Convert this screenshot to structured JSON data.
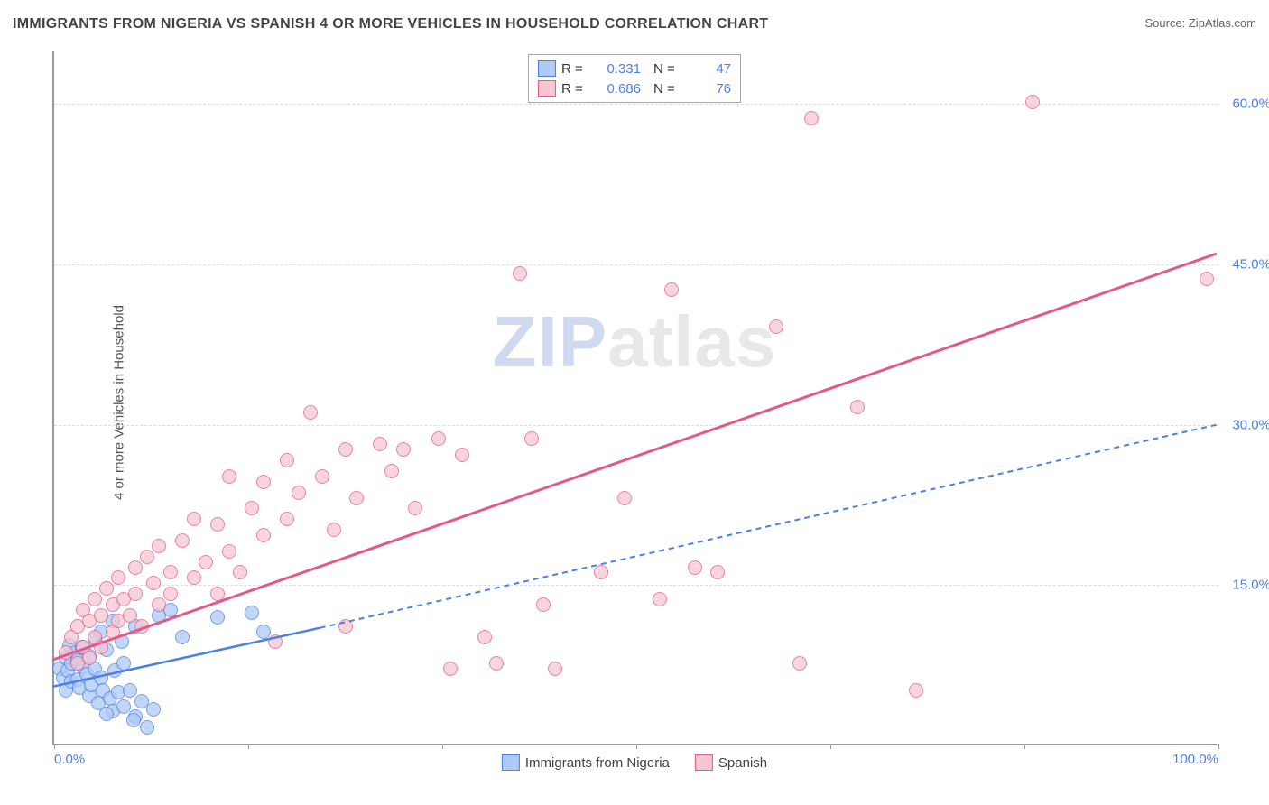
{
  "title": "IMMIGRANTS FROM NIGERIA VS SPANISH 4 OR MORE VEHICLES IN HOUSEHOLD CORRELATION CHART",
  "source_prefix": "Source: ",
  "source_link": "ZipAtlas.com",
  "ylabel": "4 or more Vehicles in Household",
  "watermark_a": "ZIP",
  "watermark_b": "atlas",
  "chart": {
    "type": "scatter",
    "background_color": "#ffffff",
    "grid_color": "#dddddd",
    "axis_color": "#999999",
    "tick_label_color": "#4a80e8",
    "xlim": [
      0,
      100
    ],
    "ylim": [
      0,
      65
    ],
    "x_ticks": [
      0,
      16.67,
      33.33,
      50,
      66.67,
      83.33,
      100
    ],
    "x_tick_labels_shown": {
      "0": "0.0%",
      "100": "100.0%"
    },
    "y_gridlines": [
      15,
      30,
      45,
      60
    ],
    "y_tick_labels": {
      "15": "15.0%",
      "30": "30.0%",
      "45": "45.0%",
      "60": "60.0%"
    },
    "marker_radius": 8,
    "marker_stroke_width": 1.5,
    "label_fontsize": 15,
    "title_fontsize": 16
  },
  "series": [
    {
      "name": "Immigrants from Nigeria",
      "key": "nigeria",
      "R": "0.331",
      "N": "47",
      "fill_color": "#aecaf5",
      "stroke_color": "#4a80e8",
      "trend": {
        "x1": 0,
        "y1": 5.5,
        "x2": 23,
        "y2": 11.0,
        "dash_x2": 100,
        "dash_y2": 30.0,
        "width": 2.5,
        "dash": "6,5"
      },
      "points": [
        [
          0.5,
          7.0
        ],
        [
          0.8,
          6.2
        ],
        [
          1.0,
          8.0
        ],
        [
          1.0,
          5.0
        ],
        [
          1.2,
          6.8
        ],
        [
          1.3,
          9.2
        ],
        [
          1.5,
          7.5
        ],
        [
          1.5,
          5.8
        ],
        [
          1.8,
          8.5
        ],
        [
          2.0,
          6.0
        ],
        [
          2.0,
          7.8
        ],
        [
          2.2,
          5.2
        ],
        [
          2.4,
          9.0
        ],
        [
          2.5,
          7.2
        ],
        [
          2.8,
          6.5
        ],
        [
          3.0,
          4.5
        ],
        [
          3.0,
          8.2
        ],
        [
          3.2,
          5.5
        ],
        [
          3.5,
          9.8
        ],
        [
          3.5,
          7.0
        ],
        [
          3.8,
          3.8
        ],
        [
          4.0,
          6.2
        ],
        [
          4.0,
          10.5
        ],
        [
          4.2,
          5.0
        ],
        [
          4.5,
          8.8
        ],
        [
          4.8,
          4.2
        ],
        [
          5.0,
          3.0
        ],
        [
          5.0,
          11.5
        ],
        [
          5.2,
          6.8
        ],
        [
          5.5,
          4.8
        ],
        [
          5.8,
          9.5
        ],
        [
          6.0,
          3.5
        ],
        [
          6.0,
          7.5
        ],
        [
          6.5,
          5.0
        ],
        [
          7.0,
          2.5
        ],
        [
          7.0,
          11.0
        ],
        [
          7.5,
          4.0
        ],
        [
          8.0,
          1.5
        ],
        [
          8.5,
          3.2
        ],
        [
          9.0,
          12.0
        ],
        [
          10.0,
          12.5
        ],
        [
          11.0,
          10.0
        ],
        [
          14.0,
          11.8
        ],
        [
          17.0,
          12.2
        ],
        [
          18.0,
          10.5
        ],
        [
          4.5,
          2.8
        ],
        [
          6.8,
          2.2
        ]
      ]
    },
    {
      "name": "Spanish",
      "key": "spanish",
      "R": "0.686",
      "N": "76",
      "fill_color": "#f6c6d2",
      "stroke_color": "#e5588a",
      "trend": {
        "x1": 0,
        "y1": 8.0,
        "x2": 100,
        "y2": 46.0,
        "width": 3,
        "dash": null
      },
      "points": [
        [
          1.0,
          8.5
        ],
        [
          1.5,
          10.0
        ],
        [
          2.0,
          7.5
        ],
        [
          2.0,
          11.0
        ],
        [
          2.5,
          9.0
        ],
        [
          2.5,
          12.5
        ],
        [
          3.0,
          8.0
        ],
        [
          3.0,
          11.5
        ],
        [
          3.5,
          10.0
        ],
        [
          3.5,
          13.5
        ],
        [
          4.0,
          9.0
        ],
        [
          4.0,
          12.0
        ],
        [
          4.5,
          14.5
        ],
        [
          5.0,
          10.5
        ],
        [
          5.0,
          13.0
        ],
        [
          5.5,
          11.5
        ],
        [
          5.5,
          15.5
        ],
        [
          6.0,
          13.5
        ],
        [
          6.5,
          12.0
        ],
        [
          7.0,
          16.5
        ],
        [
          7.0,
          14.0
        ],
        [
          7.5,
          11.0
        ],
        [
          8.0,
          17.5
        ],
        [
          8.5,
          15.0
        ],
        [
          9.0,
          13.0
        ],
        [
          9.0,
          18.5
        ],
        [
          10.0,
          16.0
        ],
        [
          10.0,
          14.0
        ],
        [
          11.0,
          19.0
        ],
        [
          12.0,
          15.5
        ],
        [
          12.0,
          21.0
        ],
        [
          13.0,
          17.0
        ],
        [
          14.0,
          14.0
        ],
        [
          14.0,
          20.5
        ],
        [
          15.0,
          18.0
        ],
        [
          15.0,
          25.0
        ],
        [
          16.0,
          16.0
        ],
        [
          17.0,
          22.0
        ],
        [
          18.0,
          19.5
        ],
        [
          18.0,
          24.5
        ],
        [
          19.0,
          9.5
        ],
        [
          20.0,
          21.0
        ],
        [
          20.0,
          26.5
        ],
        [
          21.0,
          23.5
        ],
        [
          22.0,
          31.0
        ],
        [
          23.0,
          25.0
        ],
        [
          24.0,
          20.0
        ],
        [
          25.0,
          27.5
        ],
        [
          25.0,
          11.0
        ],
        [
          26.0,
          23.0
        ],
        [
          28.0,
          28.0
        ],
        [
          29.0,
          25.5
        ],
        [
          30.0,
          27.5
        ],
        [
          31.0,
          22.0
        ],
        [
          33.0,
          28.5
        ],
        [
          34.0,
          7.0
        ],
        [
          35.0,
          27.0
        ],
        [
          37.0,
          10.0
        ],
        [
          40.0,
          44.0
        ],
        [
          38.0,
          7.5
        ],
        [
          41.0,
          28.5
        ],
        [
          42.0,
          13.0
        ],
        [
          43.0,
          7.0
        ],
        [
          47.0,
          16.0
        ],
        [
          49.0,
          23.0
        ],
        [
          52.0,
          13.5
        ],
        [
          53.0,
          42.5
        ],
        [
          55.0,
          16.5
        ],
        [
          57.0,
          16.0
        ],
        [
          62.0,
          39.0
        ],
        [
          64.0,
          7.5
        ],
        [
          65.0,
          58.5
        ],
        [
          69.0,
          31.5
        ],
        [
          74.0,
          5.0
        ],
        [
          84.0,
          60.0
        ],
        [
          99.0,
          43.5
        ]
      ]
    }
  ],
  "bottom_legend": [
    {
      "label": "Immigrants from Nigeria",
      "fill": "#aecaf5",
      "stroke": "#4a80e8"
    },
    {
      "label": "Spanish",
      "fill": "#f6c6d2",
      "stroke": "#e5588a"
    }
  ]
}
